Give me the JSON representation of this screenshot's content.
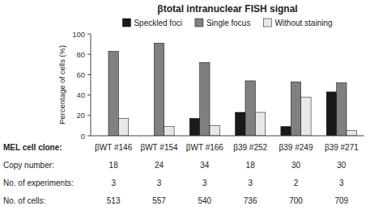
{
  "chart_data": {
    "type": "bar",
    "title": "βtotal intranuclear FISH signal",
    "ylabel": "Percentage of cells (%)",
    "categories": [
      "βWT #146",
      "βWT #154",
      "βWT #166",
      "β39 #252",
      "β39 #249",
      "β39 #271"
    ],
    "series": [
      {
        "name": "Speckled foci",
        "color": "#1a1a1a",
        "values": [
          0,
          0,
          17,
          23,
          9,
          43
        ]
      },
      {
        "name": "Single focus",
        "color": "#808080",
        "values": [
          83,
          91,
          72,
          54,
          53,
          52
        ]
      },
      {
        "name": "Without staining",
        "color": "#e8e8e8",
        "values": [
          17,
          9,
          10,
          23,
          38,
          5
        ]
      }
    ],
    "ylim": [
      0,
      100
    ],
    "yticks": [
      0,
      20,
      40,
      60,
      80,
      100
    ],
    "grid": false,
    "legend": "top",
    "table_labels": [
      "MEL cell clone:",
      "Copy number:",
      "No. of experiments:",
      "No. of cells:"
    ],
    "table_values": [
      [
        "18",
        "24",
        "34",
        "18",
        "30",
        "30"
      ],
      [
        "3",
        "3",
        "3",
        "3",
        "2",
        "3"
      ],
      [
        "513",
        "557",
        "540",
        "736",
        "700",
        "709"
      ]
    ]
  }
}
